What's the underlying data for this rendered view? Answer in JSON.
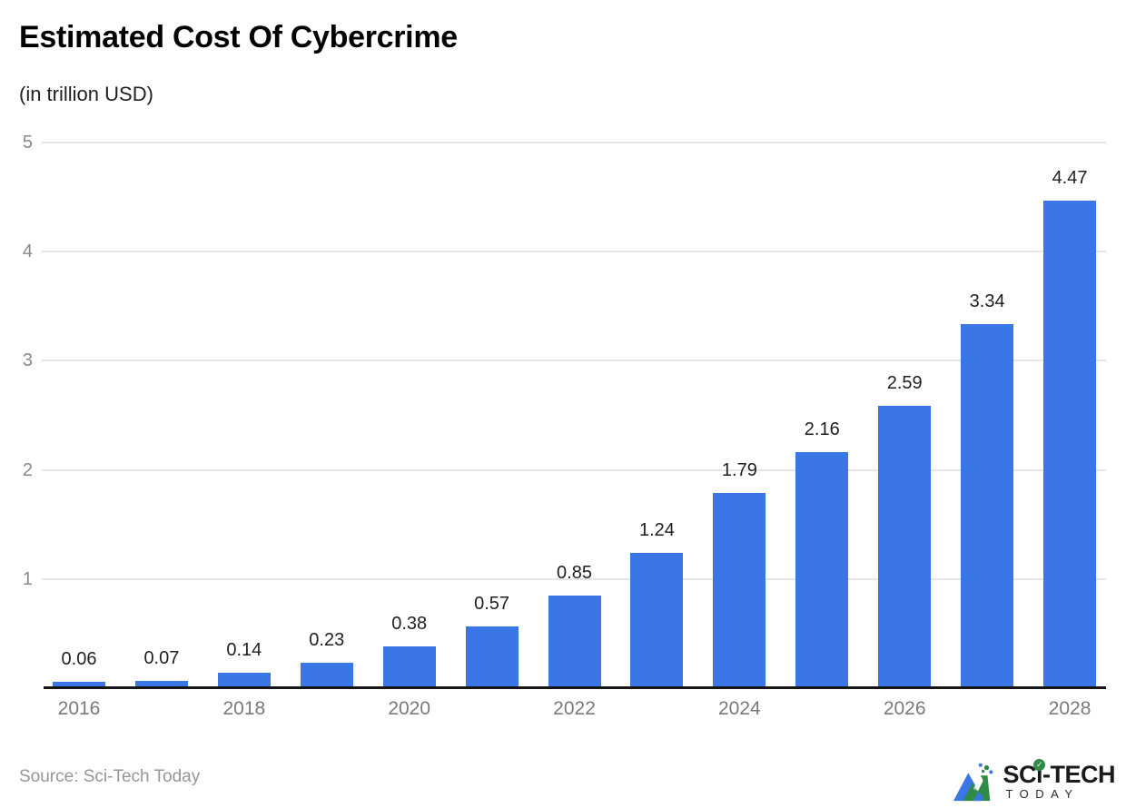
{
  "header": {
    "title": "Estimated Cost Of Cybercrime",
    "subtitle": "(in trillion USD)"
  },
  "chart_data": {
    "type": "bar",
    "title": "Estimated Cost Of Cybercrime",
    "subtitle": "(in trillion USD)",
    "categories": [
      "2016",
      "2017",
      "2018",
      "2019",
      "2020",
      "2021",
      "2022",
      "2023",
      "2024",
      "2025",
      "2026",
      "2027",
      "2028"
    ],
    "values": [
      0.06,
      0.07,
      0.14,
      0.23,
      0.38,
      0.57,
      0.85,
      1.24,
      1.79,
      2.16,
      2.59,
      3.34,
      4.47
    ],
    "value_labels": [
      "0.06",
      "0.07",
      "0.14",
      "0.23",
      "0.38",
      "0.57",
      "0.85",
      "1.24",
      "1.79",
      "2.16",
      "2.59",
      "3.34",
      "4.47"
    ],
    "x_tick_labels": [
      "2016",
      "2018",
      "2020",
      "2022",
      "2024",
      "2026",
      "2028"
    ],
    "y_tick_labels": [
      "1",
      "2",
      "3",
      "4",
      "5"
    ],
    "ylim": [
      0,
      5
    ],
    "xlabel": "",
    "ylabel": "",
    "grid": "horizontal",
    "legend": "none",
    "bar_color": "#3b76e7",
    "gridline_color": "#e6e6e6",
    "axis_line_color": "#161616",
    "tick_label_color": "#7a7a7a",
    "value_label_color": "#1f1f1f"
  },
  "footer": {
    "source": "Source: Sci-Tech Today",
    "logo": {
      "main_prefix": "SC",
      "main_i": "ı",
      "check": "✓",
      "main_suffix": "-TECH",
      "sub": "TODAY"
    }
  }
}
